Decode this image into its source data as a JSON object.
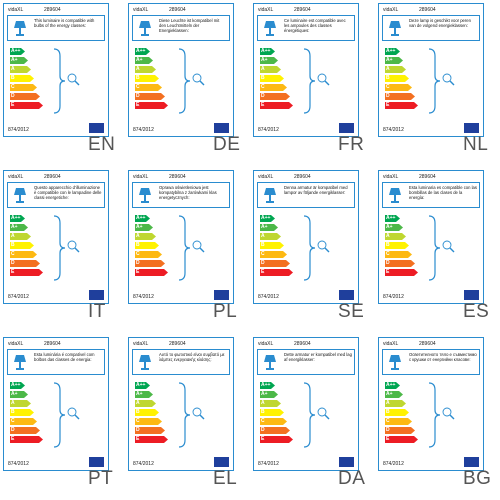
{
  "brand": "vidaXL",
  "code": "289604",
  "regulation": "874/2012",
  "classes": [
    {
      "label": "A++",
      "color": "#00a651"
    },
    {
      "label": "A+",
      "color": "#4cb848"
    },
    {
      "label": "A",
      "color": "#bfd730"
    },
    {
      "label": "B",
      "color": "#fff200"
    },
    {
      "label": "C",
      "color": "#fdb913"
    },
    {
      "label": "D",
      "color": "#f37021"
    },
    {
      "label": "E",
      "color": "#ed1c24"
    }
  ],
  "labels": [
    {
      "lang": "EN",
      "text": "This luminaire is compatible with bulbs of the energy classes:"
    },
    {
      "lang": "DE",
      "text": "Diese Leuchte ist kompatibel mit den Leuchtmitteln der Energieklassen:"
    },
    {
      "lang": "FR",
      "text": "Ce luminaire est compatible avec les ampoules des classes énergétiques:"
    },
    {
      "lang": "NL",
      "text": "Deze lamp is geschikt voor peren van de volgend energieklassen:"
    },
    {
      "lang": "IT",
      "text": "Questo apparecchio d'illuminazione è compatibile con le lampadine delle classi energetiche:"
    },
    {
      "lang": "PL",
      "text": "Oprawa oświetleniowa jest kompatybilna z żarówkami klas energetycznych:"
    },
    {
      "lang": "SE",
      "text": "Denna armatur är kompatibel med lampor av följande energiklasser:"
    },
    {
      "lang": "ES",
      "text": "Esta luminaria es compatible con las bombillas de las clases de la energía:"
    },
    {
      "lang": "PT",
      "text": "Esta luminária é compatível com bolbos das classes de energia:"
    },
    {
      "lang": "EL",
      "text": "Αυτό το φωτιστικό είναι συμβατό με λάμπες ενεργειακής κλάσης:"
    },
    {
      "lang": "DA",
      "text": "Dette armatur er kompatibel med lag af energiklasser:"
    },
    {
      "lang": "BG",
      "text": "Осветителното тяло е съвместимо с крушки от енергийни класове:"
    }
  ]
}
